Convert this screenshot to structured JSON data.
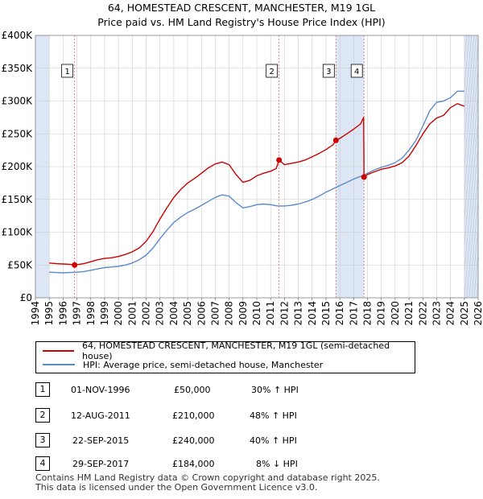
{
  "title_line1": "64, HOMESTEAD CRESCENT, MANCHESTER, M19 1GL",
  "title_line2": "Price paid vs. HM Land Registry's House Price Index (HPI)",
  "colors": {
    "property": "#cc0000",
    "hpi": "#5b8ac9",
    "shade": "#dde6f4",
    "grid": "#cccccc",
    "marker_line": "#e06666"
  },
  "chart_data": {
    "type": "line",
    "title": "Price paid vs. HM Land Registry's House Price Index (HPI)",
    "xlabel": "",
    "ylabel": "",
    "xlim": [
      1994,
      2026
    ],
    "ylim": [
      0,
      400000
    ],
    "x_ticks": [
      "1994",
      "1995",
      "1996",
      "1997",
      "1998",
      "1999",
      "2000",
      "2001",
      "2002",
      "2003",
      "2004",
      "2005",
      "2006",
      "2007",
      "2008",
      "2009",
      "2010",
      "2011",
      "2012",
      "2013",
      "2014",
      "2015",
      "2016",
      "2017",
      "2018",
      "2019",
      "2020",
      "2021",
      "2022",
      "2023",
      "2024",
      "2025",
      "2026"
    ],
    "y_ticks": [
      {
        "value": 0,
        "label": "£0"
      },
      {
        "value": 50000,
        "label": "£50K"
      },
      {
        "value": 100000,
        "label": "£100K"
      },
      {
        "value": 150000,
        "label": "£150K"
      },
      {
        "value": 200000,
        "label": "£200K"
      },
      {
        "value": 250000,
        "label": "£250K"
      },
      {
        "value": 300000,
        "label": "£300K"
      },
      {
        "value": 350000,
        "label": "£350K"
      },
      {
        "value": 400000,
        "label": "£400K"
      }
    ],
    "grid": true,
    "series": [
      {
        "name": "64, HOMESTEAD CRESCENT, MANCHESTER, M19 1GL (semi-detached house)",
        "x": [
          1995.0,
          1995.5,
          1996.0,
          1996.5,
          1996.83,
          1997.5,
          1998.0,
          1998.5,
          1999.0,
          1999.5,
          2000.0,
          2000.5,
          2001.0,
          2001.5,
          2002.0,
          2002.5,
          2003.0,
          2003.5,
          2004.0,
          2004.5,
          2005.0,
          2005.5,
          2006.0,
          2006.5,
          2007.0,
          2007.5,
          2008.0,
          2008.5,
          2009.0,
          2009.5,
          2010.0,
          2010.5,
          2011.0,
          2011.4,
          2011.61,
          2012.0,
          2012.5,
          2013.0,
          2013.5,
          2014.0,
          2014.5,
          2015.0,
          2015.5,
          2015.72,
          2016.0,
          2016.5,
          2017.0,
          2017.5,
          2017.72,
          2017.75,
          2018.0,
          2018.5,
          2019.0,
          2019.5,
          2020.0,
          2020.5,
          2021.0,
          2021.5,
          2022.0,
          2022.5,
          2023.0,
          2023.5,
          2024.0,
          2024.5,
          2025.0
        ],
        "values": [
          53000,
          52000,
          51500,
          51000,
          50000,
          52000,
          55000,
          58000,
          60000,
          61000,
          63000,
          66000,
          70000,
          76000,
          86000,
          101000,
          120000,
          137000,
          153000,
          165000,
          175000,
          182000,
          190000,
          198000,
          204000,
          207000,
          203000,
          188000,
          176000,
          179000,
          186000,
          190000,
          193000,
          197000,
          210000,
          203000,
          205000,
          207000,
          210000,
          215000,
          220000,
          226000,
          233000,
          240000,
          243000,
          250000,
          257000,
          265000,
          275000,
          184000,
          188000,
          192000,
          196000,
          198000,
          201000,
          206000,
          216000,
          232000,
          250000,
          265000,
          274000,
          278000,
          290000,
          296000,
          292000
        ]
      },
      {
        "name": "HPI: Average price, semi-detached house, Manchester",
        "x": [
          1995.0,
          1995.5,
          1996.0,
          1996.5,
          1997.0,
          1997.5,
          1998.0,
          1998.5,
          1999.0,
          1999.5,
          2000.0,
          2000.5,
          2001.0,
          2001.5,
          2002.0,
          2002.5,
          2003.0,
          2003.5,
          2004.0,
          2004.5,
          2005.0,
          2005.5,
          2006.0,
          2006.5,
          2007.0,
          2007.5,
          2008.0,
          2008.5,
          2009.0,
          2009.5,
          2010.0,
          2010.5,
          2011.0,
          2011.5,
          2012.0,
          2012.5,
          2013.0,
          2013.5,
          2014.0,
          2014.5,
          2015.0,
          2015.5,
          2016.0,
          2016.5,
          2017.0,
          2017.5,
          2018.0,
          2018.5,
          2019.0,
          2019.5,
          2020.0,
          2020.5,
          2021.0,
          2021.5,
          2022.0,
          2022.5,
          2023.0,
          2023.5,
          2024.0,
          2024.5,
          2025.0
        ],
        "values": [
          39000,
          38500,
          38000,
          38500,
          39000,
          40000,
          42000,
          44000,
          46000,
          47000,
          48000,
          50000,
          53000,
          58000,
          65000,
          76000,
          90000,
          103000,
          115000,
          123000,
          130000,
          135000,
          141000,
          147000,
          153000,
          157000,
          155000,
          145000,
          137000,
          139000,
          142000,
          143000,
          142000,
          140000,
          140000,
          141000,
          143000,
          146000,
          150000,
          155000,
          161000,
          166000,
          171000,
          176000,
          181000,
          185000,
          190000,
          195000,
          199000,
          202000,
          206000,
          213000,
          225000,
          240000,
          262000,
          285000,
          298000,
          300000,
          305000,
          315000,
          315000
        ]
      }
    ],
    "sales": [
      {
        "label": "1",
        "year": 1996.83,
        "value": 50000
      },
      {
        "label": "2",
        "year": 2011.61,
        "value": 210000
      },
      {
        "label": "3",
        "year": 2015.72,
        "value": 240000
      },
      {
        "label": "4",
        "year": 2017.75,
        "value": 184000
      }
    ],
    "shaded_ranges": [
      [
        1994,
        1995
      ],
      [
        2015.72,
        2017.75
      ],
      [
        2025.0,
        2026
      ]
    ]
  },
  "legend": {
    "property_label": "64, HOMESTEAD CRESCENT, MANCHESTER, M19 1GL (semi-detached house)",
    "hpi_label": "HPI: Average price, semi-detached house, Manchester"
  },
  "sales_table": [
    {
      "num": "1",
      "date": "01-NOV-1996",
      "price": "£50,000",
      "hpi": "30% ↑ HPI"
    },
    {
      "num": "2",
      "date": "12-AUG-2011",
      "price": "£210,000",
      "hpi": "48% ↑ HPI"
    },
    {
      "num": "3",
      "date": "22-SEP-2015",
      "price": "£240,000",
      "hpi": "40% ↑ HPI"
    },
    {
      "num": "4",
      "date": "29-SEP-2017",
      "price": "£184,000",
      "hpi": "8% ↓ HPI"
    }
  ],
  "footer_line1": "Contains HM Land Registry data © Crown copyright and database right 2025.",
  "footer_line2": "This data is licensed under the Open Government Licence v3.0."
}
